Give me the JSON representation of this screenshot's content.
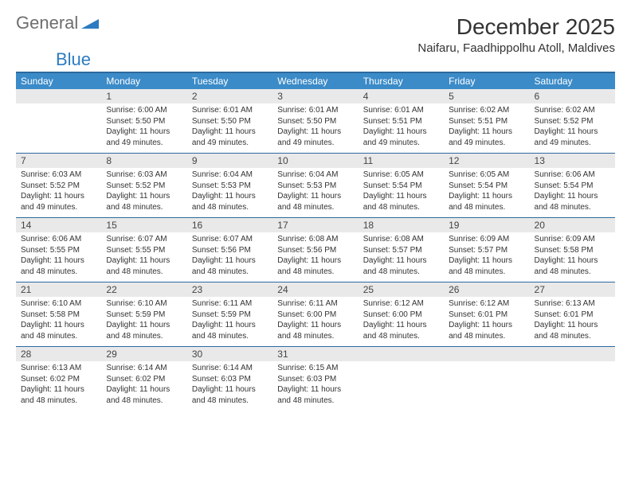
{
  "brand": {
    "general": "General",
    "blue": "Blue"
  },
  "title": "December 2025",
  "location": "Naifaru, Faadhippolhu Atoll, Maldives",
  "colors": {
    "header_bg": "#3b8bc8",
    "header_border": "#2d6a9e",
    "date_bg": "#e9e9e9",
    "text": "#333333",
    "logo_gray": "#6e6e6e",
    "logo_blue": "#2d7cc1"
  },
  "day_names": [
    "Sunday",
    "Monday",
    "Tuesday",
    "Wednesday",
    "Thursday",
    "Friday",
    "Saturday"
  ],
  "weeks": [
    [
      {
        "date": "",
        "lines": []
      },
      {
        "date": "1",
        "lines": [
          "Sunrise: 6:00 AM",
          "Sunset: 5:50 PM",
          "Daylight: 11 hours and 49 minutes."
        ]
      },
      {
        "date": "2",
        "lines": [
          "Sunrise: 6:01 AM",
          "Sunset: 5:50 PM",
          "Daylight: 11 hours and 49 minutes."
        ]
      },
      {
        "date": "3",
        "lines": [
          "Sunrise: 6:01 AM",
          "Sunset: 5:50 PM",
          "Daylight: 11 hours and 49 minutes."
        ]
      },
      {
        "date": "4",
        "lines": [
          "Sunrise: 6:01 AM",
          "Sunset: 5:51 PM",
          "Daylight: 11 hours and 49 minutes."
        ]
      },
      {
        "date": "5",
        "lines": [
          "Sunrise: 6:02 AM",
          "Sunset: 5:51 PM",
          "Daylight: 11 hours and 49 minutes."
        ]
      },
      {
        "date": "6",
        "lines": [
          "Sunrise: 6:02 AM",
          "Sunset: 5:52 PM",
          "Daylight: 11 hours and 49 minutes."
        ]
      }
    ],
    [
      {
        "date": "7",
        "lines": [
          "Sunrise: 6:03 AM",
          "Sunset: 5:52 PM",
          "Daylight: 11 hours and 49 minutes."
        ]
      },
      {
        "date": "8",
        "lines": [
          "Sunrise: 6:03 AM",
          "Sunset: 5:52 PM",
          "Daylight: 11 hours and 48 minutes."
        ]
      },
      {
        "date": "9",
        "lines": [
          "Sunrise: 6:04 AM",
          "Sunset: 5:53 PM",
          "Daylight: 11 hours and 48 minutes."
        ]
      },
      {
        "date": "10",
        "lines": [
          "Sunrise: 6:04 AM",
          "Sunset: 5:53 PM",
          "Daylight: 11 hours and 48 minutes."
        ]
      },
      {
        "date": "11",
        "lines": [
          "Sunrise: 6:05 AM",
          "Sunset: 5:54 PM",
          "Daylight: 11 hours and 48 minutes."
        ]
      },
      {
        "date": "12",
        "lines": [
          "Sunrise: 6:05 AM",
          "Sunset: 5:54 PM",
          "Daylight: 11 hours and 48 minutes."
        ]
      },
      {
        "date": "13",
        "lines": [
          "Sunrise: 6:06 AM",
          "Sunset: 5:54 PM",
          "Daylight: 11 hours and 48 minutes."
        ]
      }
    ],
    [
      {
        "date": "14",
        "lines": [
          "Sunrise: 6:06 AM",
          "Sunset: 5:55 PM",
          "Daylight: 11 hours and 48 minutes."
        ]
      },
      {
        "date": "15",
        "lines": [
          "Sunrise: 6:07 AM",
          "Sunset: 5:55 PM",
          "Daylight: 11 hours and 48 minutes."
        ]
      },
      {
        "date": "16",
        "lines": [
          "Sunrise: 6:07 AM",
          "Sunset: 5:56 PM",
          "Daylight: 11 hours and 48 minutes."
        ]
      },
      {
        "date": "17",
        "lines": [
          "Sunrise: 6:08 AM",
          "Sunset: 5:56 PM",
          "Daylight: 11 hours and 48 minutes."
        ]
      },
      {
        "date": "18",
        "lines": [
          "Sunrise: 6:08 AM",
          "Sunset: 5:57 PM",
          "Daylight: 11 hours and 48 minutes."
        ]
      },
      {
        "date": "19",
        "lines": [
          "Sunrise: 6:09 AM",
          "Sunset: 5:57 PM",
          "Daylight: 11 hours and 48 minutes."
        ]
      },
      {
        "date": "20",
        "lines": [
          "Sunrise: 6:09 AM",
          "Sunset: 5:58 PM",
          "Daylight: 11 hours and 48 minutes."
        ]
      }
    ],
    [
      {
        "date": "21",
        "lines": [
          "Sunrise: 6:10 AM",
          "Sunset: 5:58 PM",
          "Daylight: 11 hours and 48 minutes."
        ]
      },
      {
        "date": "22",
        "lines": [
          "Sunrise: 6:10 AM",
          "Sunset: 5:59 PM",
          "Daylight: 11 hours and 48 minutes."
        ]
      },
      {
        "date": "23",
        "lines": [
          "Sunrise: 6:11 AM",
          "Sunset: 5:59 PM",
          "Daylight: 11 hours and 48 minutes."
        ]
      },
      {
        "date": "24",
        "lines": [
          "Sunrise: 6:11 AM",
          "Sunset: 6:00 PM",
          "Daylight: 11 hours and 48 minutes."
        ]
      },
      {
        "date": "25",
        "lines": [
          "Sunrise: 6:12 AM",
          "Sunset: 6:00 PM",
          "Daylight: 11 hours and 48 minutes."
        ]
      },
      {
        "date": "26",
        "lines": [
          "Sunrise: 6:12 AM",
          "Sunset: 6:01 PM",
          "Daylight: 11 hours and 48 minutes."
        ]
      },
      {
        "date": "27",
        "lines": [
          "Sunrise: 6:13 AM",
          "Sunset: 6:01 PM",
          "Daylight: 11 hours and 48 minutes."
        ]
      }
    ],
    [
      {
        "date": "28",
        "lines": [
          "Sunrise: 6:13 AM",
          "Sunset: 6:02 PM",
          "Daylight: 11 hours and 48 minutes."
        ]
      },
      {
        "date": "29",
        "lines": [
          "Sunrise: 6:14 AM",
          "Sunset: 6:02 PM",
          "Daylight: 11 hours and 48 minutes."
        ]
      },
      {
        "date": "30",
        "lines": [
          "Sunrise: 6:14 AM",
          "Sunset: 6:03 PM",
          "Daylight: 11 hours and 48 minutes."
        ]
      },
      {
        "date": "31",
        "lines": [
          "Sunrise: 6:15 AM",
          "Sunset: 6:03 PM",
          "Daylight: 11 hours and 48 minutes."
        ]
      },
      {
        "date": "",
        "lines": []
      },
      {
        "date": "",
        "lines": []
      },
      {
        "date": "",
        "lines": []
      }
    ]
  ]
}
